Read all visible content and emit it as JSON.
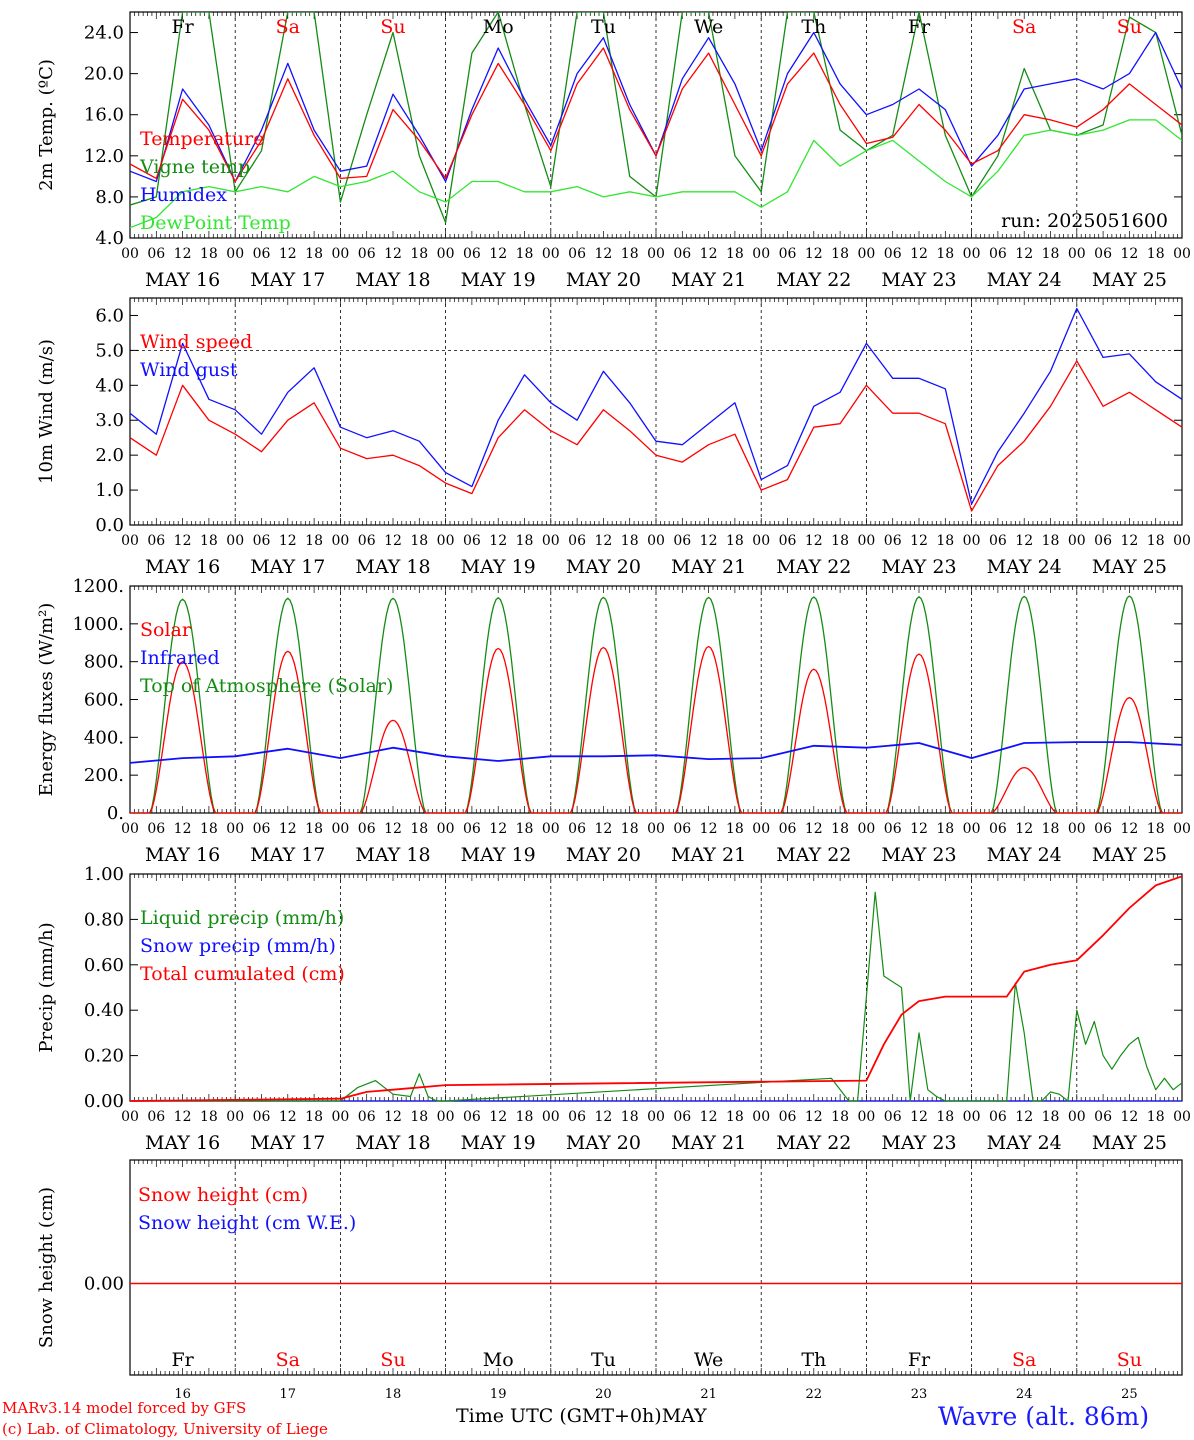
{
  "colors": {
    "red": "#ff0000",
    "darkgreen": "#148c14",
    "blue": "#1010ff",
    "lightgreen": "#32e632",
    "black": "#000000",
    "weekend": "#ff0000"
  },
  "run_label": "run: 2025051600",
  "days": {
    "weekday_abbr": [
      "Fr",
      "Sa",
      "Su",
      "Mo",
      "Tu",
      "We",
      "Th",
      "Fr",
      "Sa",
      "Su"
    ],
    "weekend": [
      false,
      true,
      true,
      false,
      false,
      false,
      false,
      false,
      true,
      true
    ],
    "date_labels": [
      "MAY 16",
      "MAY 17",
      "MAY 18",
      "MAY 19",
      "MAY 20",
      "MAY 21",
      "MAY 22",
      "MAY 23",
      "MAY 24",
      "MAY 25"
    ],
    "day_numbers": [
      "16",
      "17",
      "18",
      "19",
      "20",
      "21",
      "22",
      "23",
      "24",
      "25"
    ],
    "hour_ticks": [
      "00",
      "06",
      "12",
      "18"
    ]
  },
  "footer": {
    "model_line": "MARv3.14 model forced by GFS",
    "copyright_line": "(c) Lab. of Climatology, University of Liege",
    "time_axis_label": "Time UTC (GMT+0h)",
    "month_label": "MAY",
    "station": "Wavre (alt. 86m)"
  },
  "chart_data": [
    {
      "type": "line",
      "ylabel": "2m Temp. (ºC)",
      "ylim": [
        4.0,
        26.0
      ],
      "yticks": [
        "4.0",
        "8.0",
        "12.0",
        "16.0",
        "20.0",
        "24.0"
      ],
      "ytick_values": [
        4,
        8,
        12,
        16,
        20,
        24
      ],
      "x_hours": [
        0,
        6,
        12,
        18,
        24,
        30,
        36,
        42,
        48,
        54,
        60,
        66,
        72,
        78,
        84,
        90,
        96,
        102,
        108,
        114,
        120,
        126,
        132,
        138,
        144,
        150,
        156,
        162,
        168,
        174,
        180,
        186,
        192,
        198,
        204,
        210,
        216,
        222,
        228,
        234,
        240
      ],
      "series": [
        {
          "name": "Temperature",
          "color": "red",
          "values": [
            11.2,
            9.8,
            17.5,
            14.5,
            9.5,
            13.5,
            19.5,
            14.0,
            9.8,
            10.0,
            16.5,
            13.5,
            9.8,
            16.0,
            21.0,
            17.0,
            12.5,
            19.0,
            22.5,
            16.5,
            12.0,
            18.5,
            22.0,
            17.0,
            12.0,
            19.0,
            22.0,
            17.0,
            13.2,
            13.8,
            17.0,
            14.5,
            11.2,
            12.5,
            16.0,
            15.5,
            14.8,
            16.5,
            19.0,
            17.0,
            15.0
          ]
        },
        {
          "name": "Vigne temp",
          "color": "darkgreen",
          "values": [
            7.2,
            8.0,
            26.0,
            26.0,
            8.5,
            12.5,
            26.0,
            26.0,
            7.5,
            16.0,
            24.0,
            12.0,
            5.5,
            22.0,
            26.0,
            17.0,
            9.0,
            26.0,
            26.0,
            10.0,
            8.0,
            26.0,
            26.0,
            12.0,
            8.5,
            26.0,
            26.0,
            14.5,
            12.5,
            14.0,
            26.0,
            14.0,
            8.0,
            12.0,
            20.5,
            14.5,
            14.0,
            15.0,
            25.5,
            24.0,
            14.0
          ]
        },
        {
          "name": "Humidex",
          "color": "blue",
          "values": [
            10.5,
            9.5,
            18.5,
            15.0,
            9.5,
            14.5,
            21.0,
            14.5,
            10.5,
            11.0,
            18.0,
            14.0,
            9.5,
            16.5,
            22.5,
            17.5,
            13.0,
            20.0,
            23.5,
            17.0,
            12.0,
            19.5,
            23.5,
            19.0,
            12.5,
            20.0,
            24.0,
            19.0,
            16.0,
            17.0,
            18.5,
            16.5,
            11.0,
            14.0,
            18.5,
            19.0,
            19.5,
            18.5,
            20.0,
            24.0,
            18.5
          ]
        },
        {
          "name": "DewPoint Temp",
          "color": "lightgreen",
          "values": [
            5.0,
            6.0,
            8.5,
            9.0,
            8.5,
            9.0,
            8.5,
            10.0,
            9.0,
            9.5,
            10.5,
            8.5,
            7.5,
            9.5,
            9.5,
            8.5,
            8.5,
            9.0,
            8.0,
            8.5,
            8.0,
            8.5,
            8.5,
            8.5,
            7.0,
            8.5,
            13.5,
            11.0,
            12.5,
            13.5,
            11.5,
            9.5,
            8.0,
            10.5,
            14.0,
            14.5,
            14.0,
            14.5,
            15.5,
            15.5,
            13.5
          ]
        }
      ],
      "annotation": "run: 2025051600"
    },
    {
      "type": "line",
      "ylabel": "10m Wind (m/s)",
      "ylim": [
        0.0,
        6.5
      ],
      "yticks": [
        "0.0",
        "1.0",
        "2.0",
        "3.0",
        "4.0",
        "5.0",
        "6.0"
      ],
      "ytick_values": [
        0,
        1,
        2,
        3,
        4,
        5,
        6
      ],
      "reference_line": 5.0,
      "x_hours": [
        0,
        6,
        12,
        18,
        24,
        30,
        36,
        42,
        48,
        54,
        60,
        66,
        72,
        78,
        84,
        90,
        96,
        102,
        108,
        114,
        120,
        126,
        132,
        138,
        144,
        150,
        156,
        162,
        168,
        174,
        180,
        186,
        192,
        198,
        204,
        210,
        216,
        222,
        228,
        234,
        240
      ],
      "series": [
        {
          "name": "Wind speed",
          "color": "red",
          "values": [
            2.5,
            2.0,
            4.0,
            3.0,
            2.6,
            2.1,
            3.0,
            3.5,
            2.2,
            1.9,
            2.0,
            1.7,
            1.2,
            0.9,
            2.5,
            3.3,
            2.7,
            2.3,
            3.3,
            2.7,
            2.0,
            1.8,
            2.3,
            2.6,
            1.0,
            1.3,
            2.8,
            2.9,
            4.0,
            3.2,
            3.2,
            2.9,
            0.4,
            1.7,
            2.4,
            3.4,
            4.7,
            3.4,
            3.8,
            3.3,
            2.8
          ]
        },
        {
          "name": "Wind gust",
          "color": "blue",
          "values": [
            3.2,
            2.6,
            5.2,
            3.6,
            3.3,
            2.6,
            3.8,
            4.5,
            2.8,
            2.5,
            2.7,
            2.4,
            1.5,
            1.1,
            3.0,
            4.3,
            3.5,
            3.0,
            4.4,
            3.5,
            2.4,
            2.3,
            2.9,
            3.5,
            1.3,
            1.7,
            3.4,
            3.8,
            5.2,
            4.2,
            4.2,
            3.9,
            0.6,
            2.1,
            3.2,
            4.4,
            6.2,
            4.8,
            4.9,
            4.1,
            3.6
          ]
        }
      ]
    },
    {
      "type": "line",
      "ylabel": "Energy fluxes (W/m²)",
      "ylim": [
        0,
        1200
      ],
      "yticks": [
        "0.",
        "200.",
        "400.",
        "600.",
        "800.",
        "1000.",
        "1200."
      ],
      "ytick_values": [
        0,
        200,
        400,
        600,
        800,
        1000,
        1200
      ],
      "peak_hour": 12,
      "day_length_hours": 15,
      "daily_peaks": {
        "toa_solar": [
          1130,
          1135,
          1135,
          1138,
          1140,
          1140,
          1142,
          1143,
          1145,
          1147
        ],
        "solar": [
          800,
          855,
          490,
          870,
          875,
          880,
          760,
          840,
          240,
          610
        ]
      },
      "series": [
        {
          "name": "Solar",
          "color": "red"
        },
        {
          "name": "Infrared",
          "color": "blue",
          "x_hours": [
            0,
            12,
            24,
            36,
            48,
            60,
            72,
            84,
            96,
            108,
            120,
            132,
            144,
            156,
            168,
            180,
            192,
            204,
            216,
            228,
            240
          ],
          "values": [
            265,
            290,
            300,
            340,
            290,
            345,
            300,
            275,
            300,
            300,
            305,
            285,
            290,
            355,
            345,
            370,
            290,
            370,
            375,
            375,
            360
          ]
        },
        {
          "name": "Top of Atmosphere (Solar)",
          "color": "darkgreen"
        }
      ]
    },
    {
      "type": "line",
      "ylabel": "Precip (mm/h)",
      "ylim": [
        0.0,
        1.0
      ],
      "yticks": [
        "0.00",
        "0.20",
        "0.40",
        "0.60",
        "0.80",
        "1.00"
      ],
      "ytick_values": [
        0,
        0.2,
        0.4,
        0.6,
        0.8,
        1.0
      ],
      "series": [
        {
          "name": "Liquid precip (mm/h)",
          "color": "darkgreen",
          "x_hours": [
            0,
            24,
            48,
            52,
            56,
            60,
            64,
            66,
            68,
            70,
            72,
            160,
            164,
            166,
            170,
            172,
            176,
            178,
            180,
            182,
            184,
            186,
            188,
            200,
            202,
            204,
            206,
            208,
            210,
            212,
            214,
            216,
            218,
            220,
            222,
            224,
            226,
            228,
            230,
            232,
            234,
            236,
            238,
            240
          ],
          "values": [
            0,
            0,
            0,
            0.06,
            0.09,
            0.03,
            0.02,
            0.12,
            0.02,
            0,
            0,
            0.1,
            0,
            0,
            0.92,
            0.55,
            0.5,
            0,
            0.3,
            0.05,
            0.02,
            0,
            0,
            0,
            0.52,
            0.3,
            0,
            0,
            0.04,
            0.03,
            0,
            0.4,
            0.25,
            0.35,
            0.2,
            0.14,
            0.2,
            0.25,
            0.28,
            0.15,
            0.05,
            0.1,
            0.05,
            0.08
          ]
        },
        {
          "name": "Snow precip (mm/h)",
          "color": "blue",
          "x_hours": [
            0,
            240
          ],
          "values": [
            0,
            0
          ]
        },
        {
          "name": "Total cumulated (cm)",
          "color": "red",
          "x_hours": [
            0,
            48,
            54,
            60,
            72,
            168,
            172,
            176,
            180,
            186,
            200,
            204,
            210,
            216,
            222,
            228,
            234,
            240
          ],
          "values": [
            0,
            0.01,
            0.04,
            0.05,
            0.07,
            0.09,
            0.25,
            0.38,
            0.44,
            0.46,
            0.46,
            0.57,
            0.6,
            0.62,
            0.73,
            0.85,
            0.95,
            0.99
          ]
        }
      ]
    },
    {
      "type": "line",
      "ylabel": "Snow height (cm)",
      "yticks": [
        "0.00"
      ],
      "ytick_values": [
        0
      ],
      "series": [
        {
          "name": "Snow height (cm)",
          "color": "red",
          "x_hours": [
            0,
            240
          ],
          "values": [
            0,
            0
          ]
        },
        {
          "name": "Snow height (cm W.E.)",
          "color": "blue",
          "x_hours": [
            0,
            240
          ],
          "values": [
            0,
            0
          ]
        }
      ]
    }
  ]
}
